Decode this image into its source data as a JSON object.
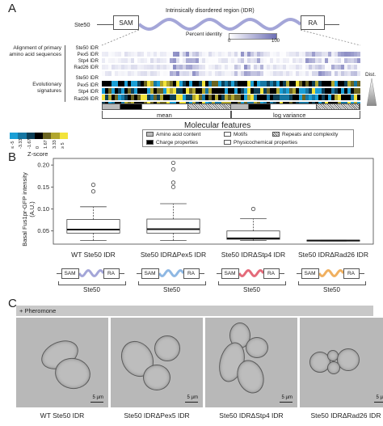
{
  "panelA": {
    "letter": "A",
    "protein_label": "Ste50",
    "sam": "SAM",
    "ra": "RA",
    "idr_title": "Intrinsically disordered region (IDR)",
    "percent_identity": "Percent identity",
    "pi_min": "0",
    "pi_max": "100",
    "alignment_label": "Alignment of primary amino acid sequences",
    "evolutionary_label": "Evolutionary signatures",
    "rows": [
      "Ste50 IDR",
      "Pex5 IDR",
      "Stp4 IDR",
      "Rad26 IDR"
    ],
    "dist_label": "Dist.",
    "mean_label": "mean",
    "logvar_label": "log variance",
    "molecular_features": "Molecular features",
    "z_ticks": [
      "≤ -5",
      "-3.33",
      "-1.67",
      "0",
      "1.67",
      "3.33",
      "≥ 5"
    ],
    "z_label": "Z-score",
    "legend": [
      "Amino acid content",
      "Motifs",
      "Repeats and complexity",
      "Charge properties",
      "Physicochemical properties"
    ],
    "colors": {
      "neg": "#1a9fd6",
      "mid": "#000000",
      "pos": "#f2e33a",
      "idr_line": "#a4a6d8"
    }
  },
  "panelB": {
    "letter": "B",
    "ylabel": "Basal Fus1pr-GFP intensity (A.U.)",
    "yticks": [
      "0.05",
      "0.10",
      "0.15",
      "0.20"
    ],
    "categories": [
      "WT Ste50 IDR",
      "Ste50 IDRΔPex5 IDR",
      "Ste50 IDRΔStp4 IDR",
      "Ste50 IDRΔRad26 IDR"
    ],
    "construct_label": "Ste50",
    "sam": "SAM",
    "ra": "RA",
    "idr_colors": [
      "#a4a6d8",
      "#8fb8e3",
      "#e46b7a",
      "#f0b060"
    ]
  },
  "chart_data": {
    "type": "box",
    "categories": [
      "WT Ste50 IDR",
      "Ste50 IDRΔPex5 IDR",
      "Ste50 IDRΔStp4 IDR",
      "Ste50 IDRΔRad26 IDR"
    ],
    "ylabel": "Basal Fus1pr-GFP intensity (A.U.)",
    "ylim": [
      0.02,
      0.215
    ],
    "boxes": [
      {
        "whisker_low": 0.028,
        "q1": 0.045,
        "median": 0.053,
        "q3": 0.076,
        "whisker_high": 0.105,
        "outliers": [
          0.14,
          0.155
        ]
      },
      {
        "whisker_low": 0.028,
        "q1": 0.045,
        "median": 0.054,
        "q3": 0.077,
        "whisker_high": 0.112,
        "outliers": [
          0.15,
          0.16,
          0.19,
          0.205
        ]
      },
      {
        "whisker_low": 0.028,
        "q1": 0.031,
        "median": 0.033,
        "q3": 0.05,
        "whisker_high": 0.078,
        "outliers": [
          0.1
        ]
      },
      {
        "whisker_low": 0.027,
        "q1": 0.027,
        "median": 0.028,
        "q3": 0.029,
        "whisker_high": 0.029,
        "outliers": []
      }
    ]
  },
  "panelC": {
    "letter": "C",
    "pheromone": "+ Pheromone",
    "scale": "5 µm",
    "captions": [
      "WT Ste50 IDR",
      "Ste50 IDRΔPex5 IDR",
      "Ste50 IDRΔStp4 IDR",
      "Ste50 IDRΔRad26 IDR"
    ]
  }
}
